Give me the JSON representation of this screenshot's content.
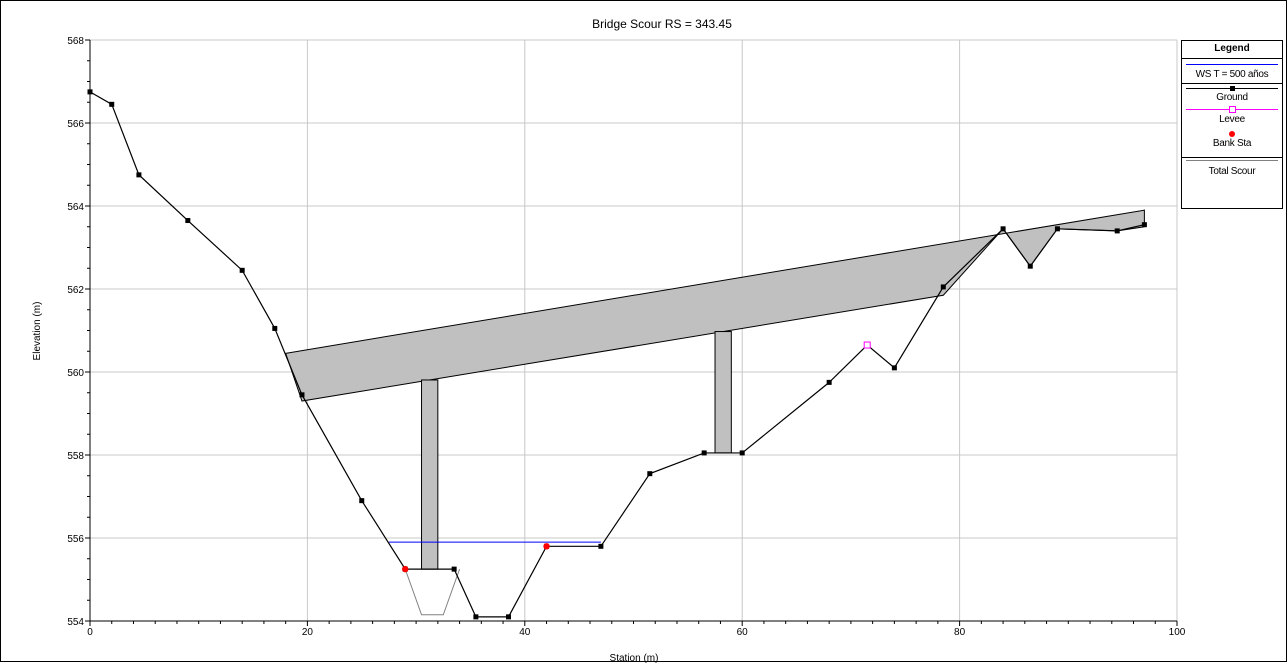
{
  "colors": {
    "ws": "#0000ff",
    "ground": "#000000",
    "levee": "#ff00ff",
    "bank": "#ff0000",
    "deck_fill": "#c0c0c0",
    "grid": "#c8c8c8",
    "scour": "#808080"
  },
  "chart_data": {
    "type": "line",
    "title": "Bridge Scour RS = 343.45",
    "xlabel": "Station (m)",
    "ylabel": "Elevation (m)",
    "xlim": [
      0,
      100
    ],
    "ylim": [
      554,
      568
    ],
    "xticks": [
      0,
      20,
      40,
      60,
      80,
      100
    ],
    "yticks": [
      554,
      556,
      558,
      560,
      562,
      564,
      566,
      568
    ],
    "grid": true,
    "legend_position": "right",
    "legend_title": "Legend",
    "legend": [
      "WS T = 500 años",
      "Ground",
      "Levee",
      "Bank Sta",
      "Total Scour"
    ],
    "series": [
      {
        "name": "Ground",
        "x": [
          0,
          2,
          4.5,
          9,
          14,
          17,
          19.5,
          25,
          29,
          33.5,
          35.5,
          38.5,
          42,
          47,
          51.5,
          56.5,
          60,
          68,
          71.5,
          74,
          78.5,
          84,
          86.5,
          89,
          94.5,
          97
        ],
        "y": [
          566.75,
          566.45,
          564.75,
          563.65,
          562.45,
          561.05,
          559.45,
          556.9,
          555.25,
          555.25,
          554.1,
          554.1,
          555.8,
          555.8,
          557.55,
          558.05,
          558.05,
          559.75,
          560.65,
          560.1,
          562.05,
          563.45,
          562.55,
          563.45,
          563.4,
          563.55
        ]
      },
      {
        "name": "WS T = 500 años",
        "x": [
          27.5,
          47
        ],
        "y": [
          555.9,
          555.9
        ]
      },
      {
        "name": "Levee",
        "x": [
          71.5
        ],
        "y": [
          560.65
        ]
      },
      {
        "name": "Bank Sta",
        "x": [
          29,
          42
        ],
        "y": [
          555.25,
          555.8
        ]
      },
      {
        "name": "Total Scour",
        "x": [
          29,
          30.5,
          32.5,
          34
        ],
        "y": [
          555.25,
          554.15,
          554.15,
          555.25
        ]
      }
    ],
    "bridge_deck": {
      "high_chord": {
        "x": [
          18,
          97
        ],
        "y": [
          560.45,
          563.9
        ]
      },
      "low_chord": {
        "x": [
          19.5,
          78.5
        ],
        "y": [
          559.3,
          561.85
        ]
      },
      "end_top_y": 563.5
    },
    "piers": [
      {
        "x_left": 30.5,
        "x_right": 32,
        "y_bottom": 555.25
      },
      {
        "x_left": 57.5,
        "x_right": 59,
        "y_bottom": 558.05
      }
    ]
  }
}
